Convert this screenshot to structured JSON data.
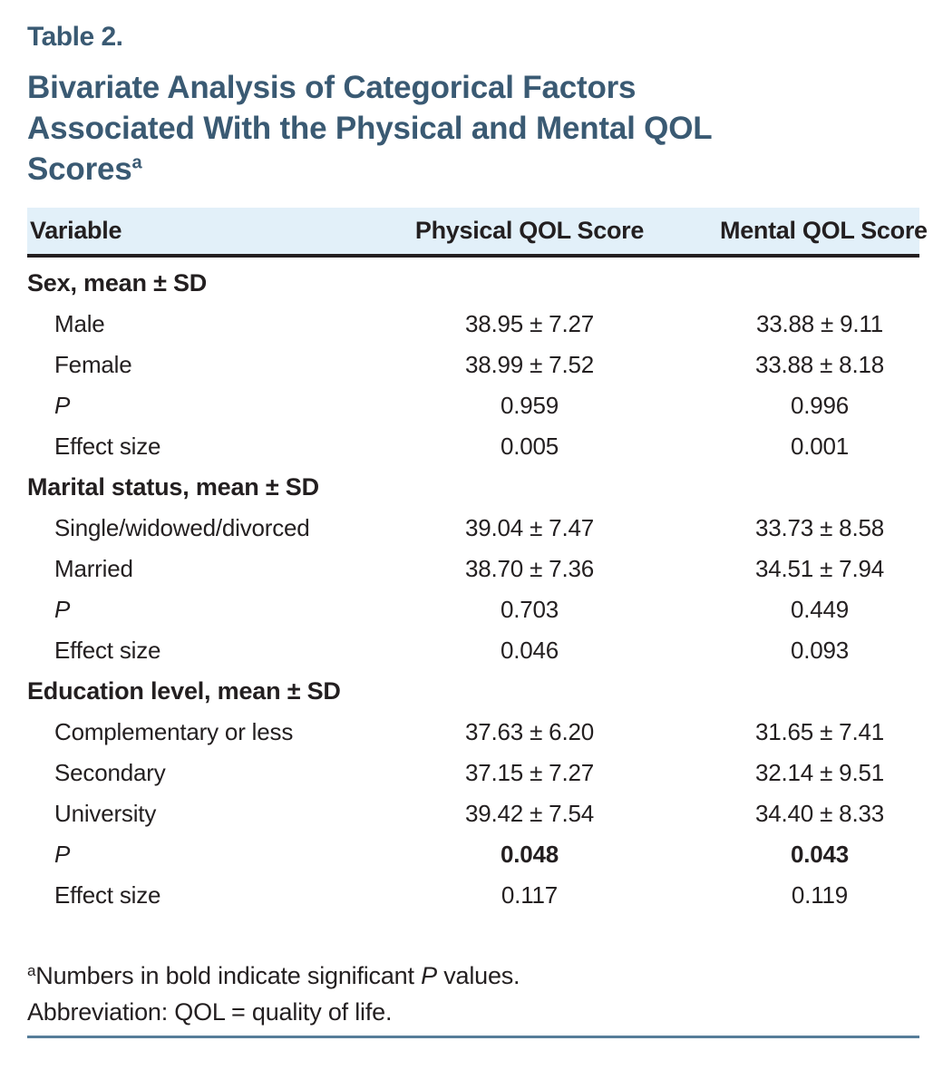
{
  "colors": {
    "accent_teal": "#3a5a73",
    "header_row_bg": "#e2f0f9",
    "body_text": "#231f20",
    "bottom_rule": "#567d99"
  },
  "header": {
    "table_label": "Table 2.",
    "title_line1": "Bivariate Analysis of Categorical Factors",
    "title_line2": "Associated With the Physical and Mental QOL",
    "title_line3": "Scores",
    "title_superscript": "a"
  },
  "table": {
    "columns": [
      "Variable",
      "Physical QOL Score",
      "Mental QOL Score"
    ],
    "sections": [
      {
        "header": "Sex, mean ± SD",
        "rows": [
          {
            "label": "Male",
            "values": [
              "38.95 ± 7.27",
              "33.88 ± 9.11"
            ],
            "italic_label": false,
            "bold_values": false
          },
          {
            "label": "Female",
            "values": [
              "38.99 ± 7.52",
              "33.88 ± 8.18"
            ],
            "italic_label": false,
            "bold_values": false
          },
          {
            "label": "P",
            "values": [
              "0.959",
              "0.996"
            ],
            "italic_label": true,
            "bold_values": false
          },
          {
            "label": "Effect size",
            "values": [
              "0.005",
              "0.001"
            ],
            "italic_label": false,
            "bold_values": false
          }
        ]
      },
      {
        "header": "Marital status, mean ± SD",
        "rows": [
          {
            "label": "Single/widowed/divorced",
            "values": [
              "39.04 ± 7.47",
              "33.73 ± 8.58"
            ],
            "italic_label": false,
            "bold_values": false
          },
          {
            "label": "Married",
            "values": [
              "38.70 ± 7.36",
              "34.51 ± 7.94"
            ],
            "italic_label": false,
            "bold_values": false
          },
          {
            "label": "P",
            "values": [
              "0.703",
              "0.449"
            ],
            "italic_label": true,
            "bold_values": false
          },
          {
            "label": "Effect size",
            "values": [
              "0.046",
              "0.093"
            ],
            "italic_label": false,
            "bold_values": false
          }
        ]
      },
      {
        "header": "Education level, mean ± SD",
        "rows": [
          {
            "label": "Complementary or less",
            "values": [
              "37.63 ± 6.20",
              "31.65 ± 7.41"
            ],
            "italic_label": false,
            "bold_values": false
          },
          {
            "label": "Secondary",
            "values": [
              "37.15 ± 7.27",
              "32.14 ± 9.51"
            ],
            "italic_label": false,
            "bold_values": false
          },
          {
            "label": "University",
            "values": [
              "39.42 ± 7.54",
              "34.40 ± 8.33"
            ],
            "italic_label": false,
            "bold_values": false
          },
          {
            "label": "P",
            "values": [
              "0.048",
              "0.043"
            ],
            "italic_label": true,
            "bold_values": true
          },
          {
            "label": "Effect size",
            "values": [
              "0.117",
              "0.119"
            ],
            "italic_label": false,
            "bold_values": false
          }
        ]
      }
    ]
  },
  "footnotes": {
    "note_a_superscript": "a",
    "note_a_pre": "Numbers in bold indicate significant ",
    "note_a_italic": "P",
    "note_a_post": " values.",
    "abbreviation": "Abbreviation: QOL = quality of life."
  }
}
